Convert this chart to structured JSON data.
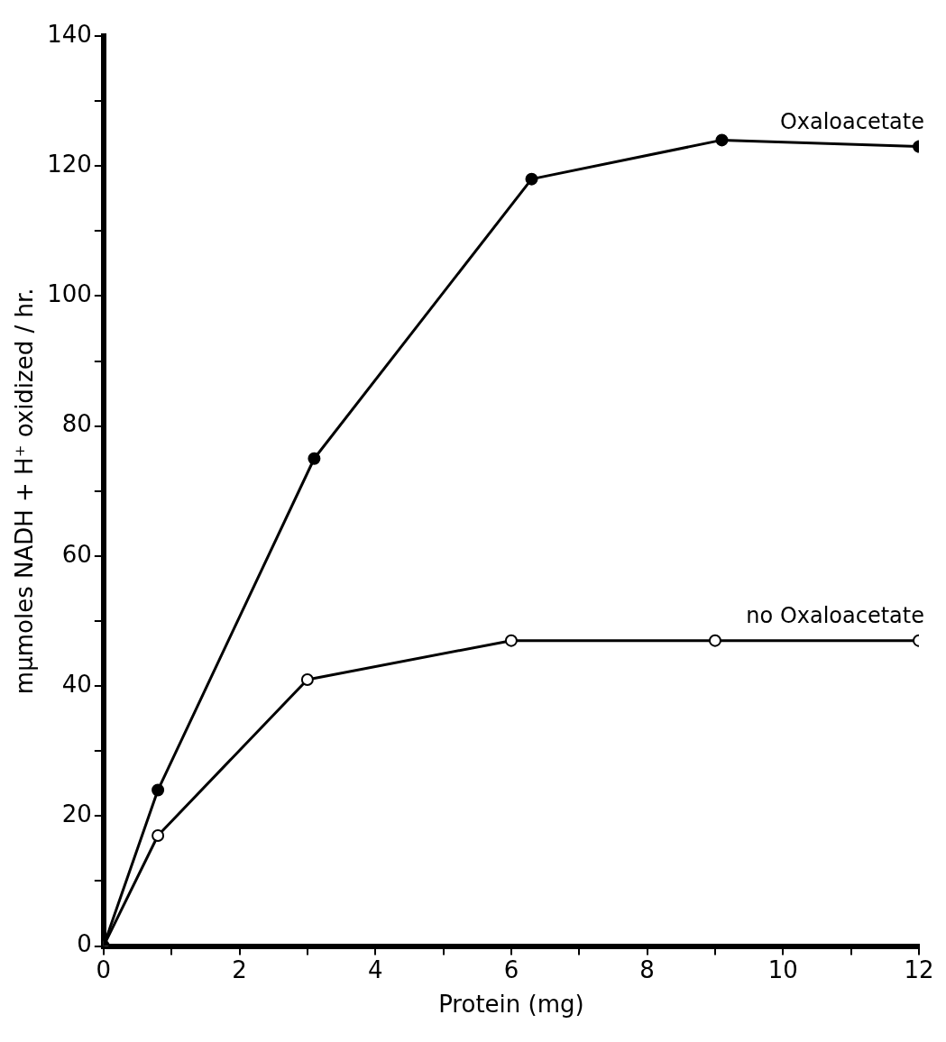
{
  "chart_data": {
    "type": "line",
    "xlabel": "Protein (mg)",
    "ylabel": "mμmoles NADH + H⁺ oxidized / hr.",
    "xlim": [
      0,
      12
    ],
    "ylim": [
      0,
      140
    ],
    "xticks": [
      0,
      {
        "value": 1,
        "label": null
      },
      2,
      {
        "value": 3,
        "label": null
      },
      4,
      {
        "value": 5,
        "label": null
      },
      6,
      {
        "value": 7,
        "label": null
      },
      8,
      {
        "value": 9,
        "label": null
      },
      10,
      {
        "value": 11,
        "label": null
      },
      12
    ],
    "yticks": [
      0,
      {
        "value": 10,
        "label": null
      },
      20,
      {
        "value": 30,
        "label": null
      },
      40,
      {
        "value": 50,
        "label": null
      },
      60,
      {
        "value": 70,
        "label": null
      },
      80,
      {
        "value": 90,
        "label": null
      },
      100,
      {
        "value": 110,
        "label": null
      },
      120,
      {
        "value": 130,
        "label": null
      },
      140
    ],
    "marker": "circle",
    "line_style": "solid",
    "legend": false,
    "grid": false,
    "series": [
      {
        "name": "Oxaloacetate",
        "color": "#000000",
        "x": [
          0,
          0.8,
          3.1,
          6.3,
          9.1,
          12
        ],
        "values": [
          0,
          24,
          75,
          118,
          124,
          123
        ]
      },
      {
        "name": "no Oxaloacetate",
        "color": "#000000",
        "x": [
          0,
          0.8,
          3.0,
          6.0,
          9.0,
          12.0
        ],
        "values": [
          0,
          17,
          41,
          47,
          47,
          47
        ]
      }
    ]
  }
}
